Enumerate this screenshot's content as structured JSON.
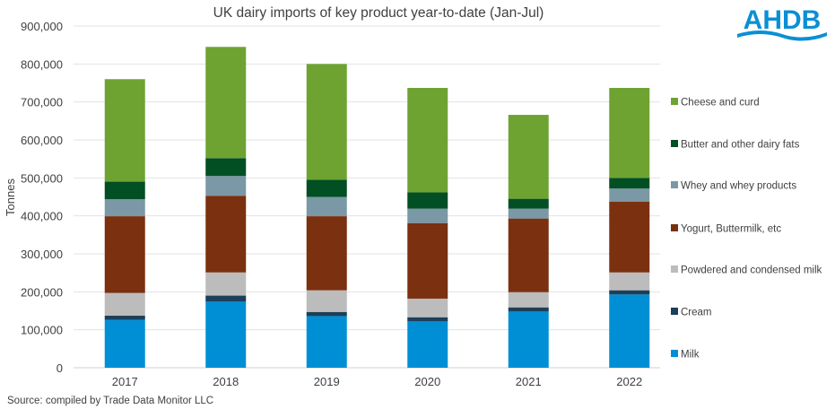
{
  "logo_text": "AHDB",
  "source": "Source: compiled by Trade Data Monitor LLC",
  "chart_data": {
    "type": "bar",
    "stacked": true,
    "title": "UK dairy imports of key product year-to-date (Jan-Jul)",
    "xlabel": "",
    "ylabel": "Tonnes",
    "ylim": [
      0,
      900000
    ],
    "yticks": [
      "0",
      "100,000",
      "200,000",
      "300,000",
      "400,000",
      "500,000",
      "600,000",
      "700,000",
      "800,000",
      "900,000"
    ],
    "grid": true,
    "legend_position": "right",
    "categories": [
      "2017",
      "2018",
      "2019",
      "2020",
      "2021",
      "2022"
    ],
    "series": [
      {
        "name": "Milk",
        "color": "#008fd5",
        "values": [
          126000,
          174000,
          136000,
          122000,
          148000,
          193000
        ]
      },
      {
        "name": "Cream",
        "color": "#1c3f5a",
        "values": [
          11000,
          16000,
          11000,
          11000,
          11000,
          11000
        ]
      },
      {
        "name": "Powdered and condensed milk",
        "color": "#bcbcbc",
        "values": [
          60000,
          61000,
          57000,
          49000,
          40000,
          47000
        ]
      },
      {
        "name": "Yogurt, Buttermilk, etc",
        "color": "#7b3010",
        "values": [
          202000,
          202000,
          195000,
          199000,
          194000,
          186000
        ]
      },
      {
        "name": "Whey and whey products",
        "color": "#7a98a5",
        "values": [
          45000,
          52000,
          51000,
          38000,
          26000,
          35000
        ]
      },
      {
        "name": "Butter and other dairy fats",
        "color": "#034f24",
        "values": [
          46000,
          47000,
          45000,
          43000,
          26000,
          28000
        ]
      },
      {
        "name": "Cheese and curd",
        "color": "#6ea332",
        "values": [
          270000,
          293000,
          305000,
          275000,
          221000,
          237000
        ]
      }
    ]
  }
}
